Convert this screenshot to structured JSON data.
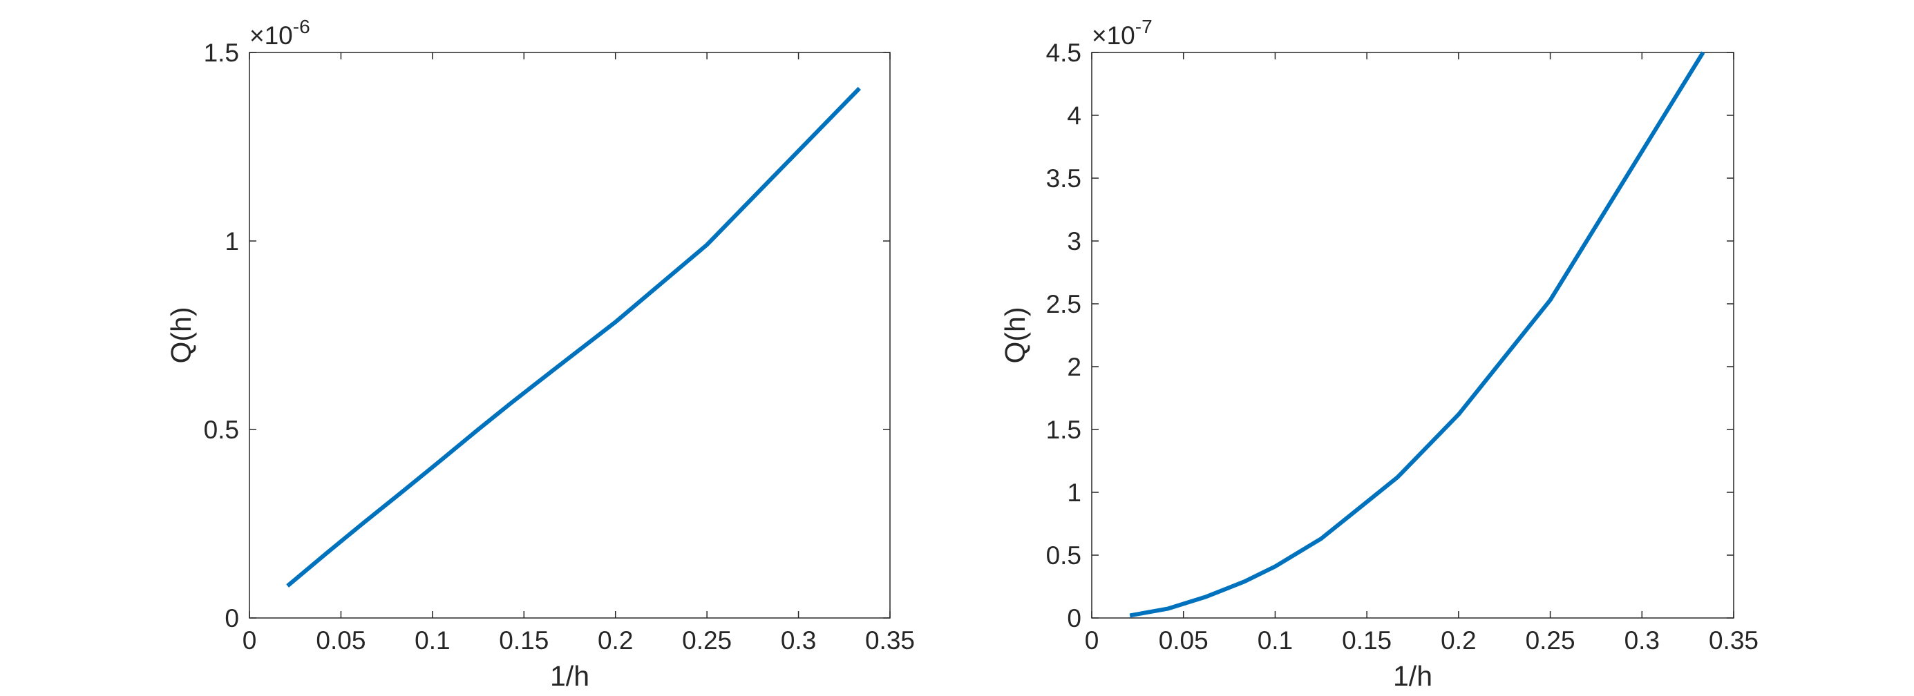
{
  "figure": {
    "background": "#ffffff",
    "line_color": "#0072BD",
    "axes_color": "#262626"
  },
  "chart_data": [
    {
      "type": "line",
      "xlabel": "1/h",
      "ylabel": "Q(h)",
      "exponent_label": "×10",
      "exponent": "-6",
      "xlim": [
        0,
        0.35
      ],
      "ylim": [
        0,
        1.5
      ],
      "xticks": [
        0,
        0.05,
        0.1,
        0.15,
        0.2,
        0.25,
        0.3,
        0.35
      ],
      "xtick_labels": [
        "0",
        "0.05",
        "0.1",
        "0.15",
        "0.2",
        "0.25",
        "0.3",
        "0.35"
      ],
      "yticks": [
        0,
        0.5,
        1,
        1.5
      ],
      "ytick_labels": [
        "0",
        "0.5",
        "1",
        "1.5"
      ],
      "grid": false,
      "series": [
        {
          "color": "#0072BD",
          "x": [
            0.0208,
            0.0417,
            0.0625,
            0.0833,
            0.1,
            0.125,
            0.1429,
            0.1667,
            0.2,
            0.25,
            0.3333
          ],
          "y": [
            0.085,
            0.17,
            0.253,
            0.334,
            0.4,
            0.5,
            0.57,
            0.66,
            0.785,
            0.99,
            1.405
          ]
        }
      ]
    },
    {
      "type": "line",
      "xlabel": "1/h",
      "ylabel": "Q(h)",
      "exponent_label": "×10",
      "exponent": "-7",
      "xlim": [
        0,
        0.35
      ],
      "ylim": [
        0,
        4.5
      ],
      "xticks": [
        0,
        0.05,
        0.1,
        0.15,
        0.2,
        0.25,
        0.3,
        0.35
      ],
      "xtick_labels": [
        "0",
        "0.05",
        "0.1",
        "0.15",
        "0.2",
        "0.25",
        "0.3",
        "0.35"
      ],
      "yticks": [
        0,
        0.5,
        1,
        1.5,
        2,
        2.5,
        3,
        3.5,
        4,
        4.5
      ],
      "ytick_labels": [
        "0",
        "0.5",
        "1",
        "1.5",
        "2",
        "2.5",
        "3",
        "3.5",
        "4",
        "4.5"
      ],
      "grid": false,
      "series": [
        {
          "color": "#0072BD",
          "x": [
            0.0208,
            0.0417,
            0.0625,
            0.0833,
            0.1,
            0.125,
            0.1429,
            0.1667,
            0.2,
            0.25,
            0.3333
          ],
          "y": [
            0.02,
            0.075,
            0.17,
            0.29,
            0.41,
            0.63,
            0.84,
            1.12,
            1.62,
            2.53,
            4.5
          ]
        }
      ]
    }
  ]
}
